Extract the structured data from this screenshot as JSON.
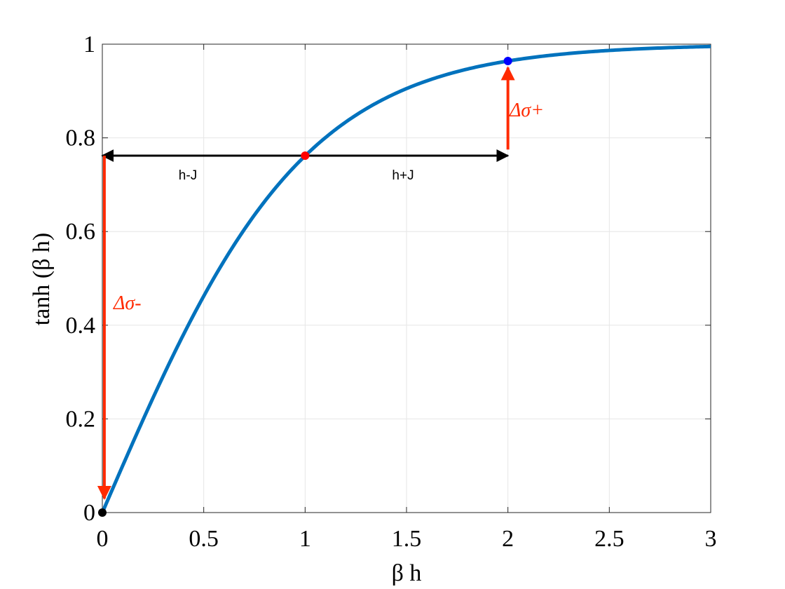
{
  "chart_data": {
    "type": "line",
    "xlabel": "β h",
    "ylabel": "tanh  (β h)",
    "xlim": [
      0,
      3
    ],
    "ylim": [
      0,
      1
    ],
    "x_ticks": [
      0,
      0.5,
      1,
      1.5,
      2,
      2.5,
      3
    ],
    "x_tick_labels": [
      "0",
      "0.5",
      "1",
      "1.5",
      "2",
      "2.5",
      "3"
    ],
    "y_ticks": [
      0,
      0.2,
      0.4,
      0.6,
      0.8,
      1
    ],
    "y_tick_labels": [
      "0",
      "0.2",
      "0.4",
      "0.6",
      "0.8",
      "1"
    ],
    "grid": true,
    "series": [
      {
        "function": "tanh",
        "x_range": [
          0,
          3
        ],
        "color": "#0072BD"
      }
    ],
    "points": [
      {
        "x": 0,
        "y": 0,
        "color": "#000000"
      },
      {
        "x": 1,
        "y": 0.762,
        "color": "#FF0000"
      },
      {
        "x": 2,
        "y": 0.964,
        "color": "#0000FF"
      }
    ],
    "annotations": {
      "h_minus_j": "h-J",
      "h_plus_j": "h+J",
      "delta_sigma_minus": "Δσ-",
      "delta_sigma_plus": "Δσ+"
    },
    "arrows": [
      {
        "from": [
          1,
          0.762
        ],
        "to": [
          0,
          0.762
        ],
        "color": "#000000"
      },
      {
        "from": [
          1,
          0.762
        ],
        "to": [
          2,
          0.762
        ],
        "color": "#000000"
      },
      {
        "from": [
          0.01,
          0.762
        ],
        "to": [
          0.01,
          0.03
        ],
        "color": "#FF2A00"
      },
      {
        "from": [
          2,
          0.775
        ],
        "to": [
          2,
          0.95
        ],
        "color": "#FF2A00"
      }
    ]
  }
}
